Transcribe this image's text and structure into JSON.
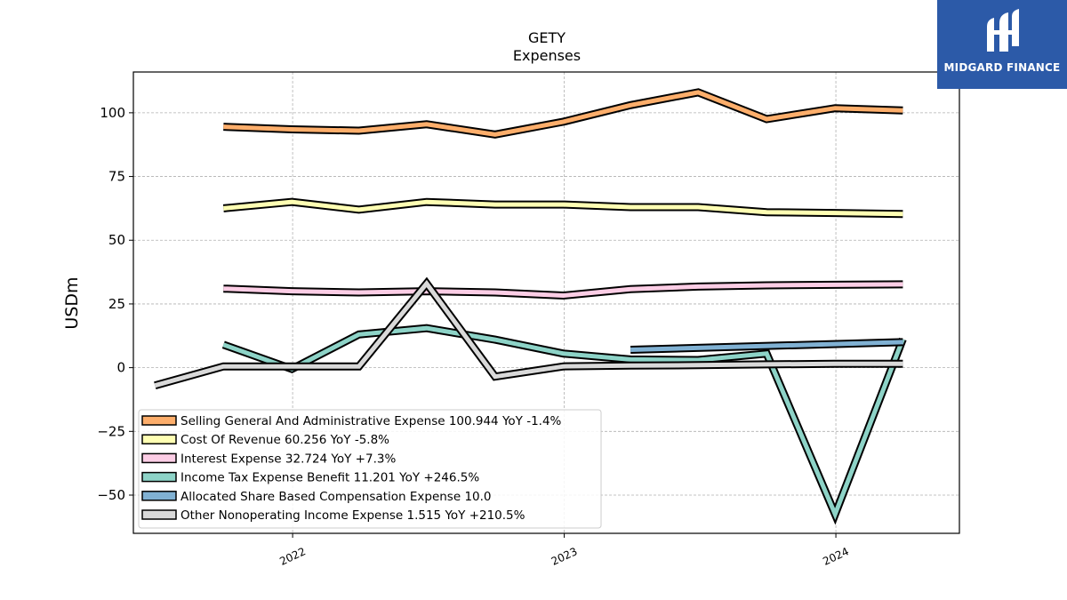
{
  "chart_data": {
    "type": "line",
    "title": "GETY",
    "subtitle": "Expenses",
    "ylabel": "USDm",
    "xlabel": "",
    "ylim": [
      -65,
      116
    ],
    "xlim": [
      "2021-06-01",
      "2024-06-15"
    ],
    "yticks": [
      -50,
      -25,
      0,
      25,
      50,
      75,
      100
    ],
    "ytick_labels": [
      "−50",
      "−25",
      "0",
      "25",
      "50",
      "75",
      "100"
    ],
    "xticks": [
      "2022-01-01",
      "2023-01-01",
      "2024-01-01"
    ],
    "xtick_labels": [
      "2022",
      "2023",
      "2024"
    ],
    "grid": true,
    "legend_position": "lower-left",
    "series": [
      {
        "name": "Selling General And Administrative Expense",
        "legend_label": "Selling General And Administrative Expense  100.944 YoY -1.4%",
        "color": "#fdae6b",
        "x": [
          "2021-09-30",
          "2021-12-31",
          "2022-03-31",
          "2022-06-30",
          "2022-09-30",
          "2022-12-31",
          "2023-03-31",
          "2023-06-30",
          "2023-09-30",
          "2023-12-31",
          "2024-03-31"
        ],
        "y": [
          94.5,
          93.5,
          93.0,
          95.5,
          91.5,
          96.5,
          103.0,
          108.0,
          97.5,
          101.8,
          100.9
        ]
      },
      {
        "name": "Cost Of Revenue",
        "legend_label": "Cost Of Revenue  60.256 YoY -5.8%",
        "color": "#ffffb3",
        "x": [
          "2021-09-30",
          "2021-12-31",
          "2022-03-31",
          "2022-06-30",
          "2022-09-30",
          "2022-12-31",
          "2023-03-31",
          "2023-06-30",
          "2023-09-30",
          "2023-12-31",
          "2024-03-31"
        ],
        "y": [
          62.5,
          65.0,
          62.0,
          65.0,
          64.0,
          64.0,
          63.0,
          63.0,
          61.0,
          60.7,
          60.3
        ]
      },
      {
        "name": "Interest Expense",
        "legend_label": "Interest Expense  32.724 YoY +7.3%",
        "color": "#fccde5",
        "x": [
          "2021-09-30",
          "2021-12-31",
          "2022-03-31",
          "2022-06-30",
          "2022-09-30",
          "2022-12-31",
          "2023-03-31",
          "2023-06-30",
          "2023-09-30",
          "2023-12-31",
          "2024-03-31"
        ],
        "y": [
          31.0,
          30.0,
          29.5,
          30.0,
          29.5,
          28.3,
          30.8,
          31.8,
          32.3,
          32.5,
          32.7
        ]
      },
      {
        "name": "Income Tax Expense Benefit",
        "legend_label": "Income Tax Expense Benefit  11.201 YoY +246.5%",
        "color": "#8dd3c7",
        "x": [
          "2021-09-30",
          "2021-12-31",
          "2022-03-31",
          "2022-06-30",
          "2022-09-30",
          "2022-12-31",
          "2023-03-31",
          "2023-06-30",
          "2023-09-30",
          "2023-12-31",
          "2024-03-31"
        ],
        "y": [
          9.0,
          -0.5,
          13.0,
          15.5,
          11.0,
          5.5,
          3.2,
          3.0,
          5.5,
          -57.5,
          11.2
        ]
      },
      {
        "name": "Allocated Share Based Compensation Expense",
        "legend_label": "Allocated Share Based Compensation Expense  10.0",
        "color": "#80b1d3",
        "x": [
          "2023-03-31",
          "2024-03-31"
        ],
        "y": [
          7.0,
          10.0
        ]
      },
      {
        "name": "Other Nonoperating Income Expense",
        "legend_label": "Other Nonoperating Income Expense  1.515 YoY +210.5%",
        "color": "#d9d9d9",
        "x": [
          "2021-06-30",
          "2021-09-30",
          "2021-12-31",
          "2022-03-31",
          "2022-06-30",
          "2022-09-30",
          "2022-12-31",
          "2023-03-31",
          "2023-06-30",
          "2023-09-30",
          "2023-12-31",
          "2024-03-31"
        ],
        "y": [
          -7.0,
          0.5,
          0.5,
          0.5,
          33.0,
          -3.5,
          0.5,
          0.8,
          1.0,
          1.3,
          1.5,
          1.5
        ]
      }
    ]
  },
  "logo": {
    "text": "MIDGARD FINANCE",
    "icon": "midgard-logo-icon",
    "background": "#2c5aa8"
  }
}
